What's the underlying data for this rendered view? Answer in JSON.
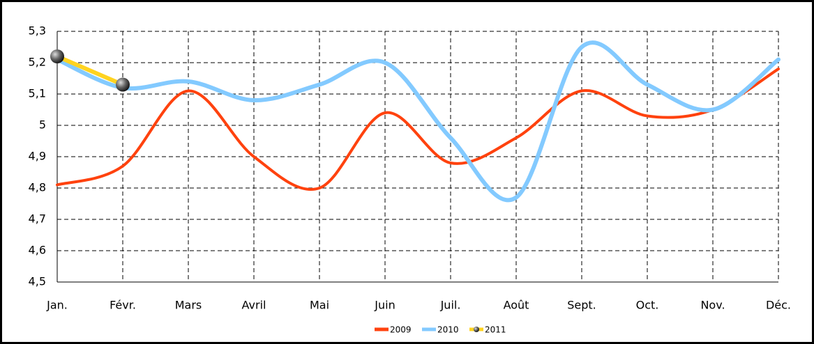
{
  "chart_data": {
    "type": "line",
    "smooth": true,
    "categories": [
      "Jan.",
      "Févr.",
      "Mars",
      "Avril",
      "Mai",
      "Juin",
      "Juil.",
      "Août",
      "Sept.",
      "Oct.",
      "Nov.",
      "Déc."
    ],
    "series": [
      {
        "name": "2009",
        "color": "#ff420e",
        "values": [
          4.81,
          4.87,
          5.11,
          4.9,
          4.8,
          5.04,
          4.88,
          4.96,
          5.11,
          5.03,
          5.05,
          5.18
        ]
      },
      {
        "name": "2010",
        "color": "#83caff",
        "values": [
          5.21,
          5.12,
          5.14,
          5.08,
          5.13,
          5.2,
          4.96,
          4.77,
          5.25,
          5.13,
          5.05,
          5.21
        ]
      },
      {
        "name": "2011",
        "color": "#ffd320",
        "markers": true,
        "values": [
          5.22,
          5.13,
          null,
          null,
          null,
          null,
          null,
          null,
          null,
          null,
          null,
          null
        ]
      }
    ],
    "ylim": [
      4.5,
      5.3
    ],
    "yticks": [
      {
        "value": 4.5,
        "label": "4,5"
      },
      {
        "value": 4.6,
        "label": "4,6"
      },
      {
        "value": 4.7,
        "label": "4,7"
      },
      {
        "value": 4.8,
        "label": "4,8"
      },
      {
        "value": 4.9,
        "label": "4,9"
      },
      5,
      {
        "value": 5.1,
        "label": "5,1"
      },
      {
        "value": 5.2,
        "label": "5,2"
      },
      {
        "value": 5.3,
        "label": "5,3"
      }
    ],
    "grid": true,
    "legend": "bottom"
  }
}
